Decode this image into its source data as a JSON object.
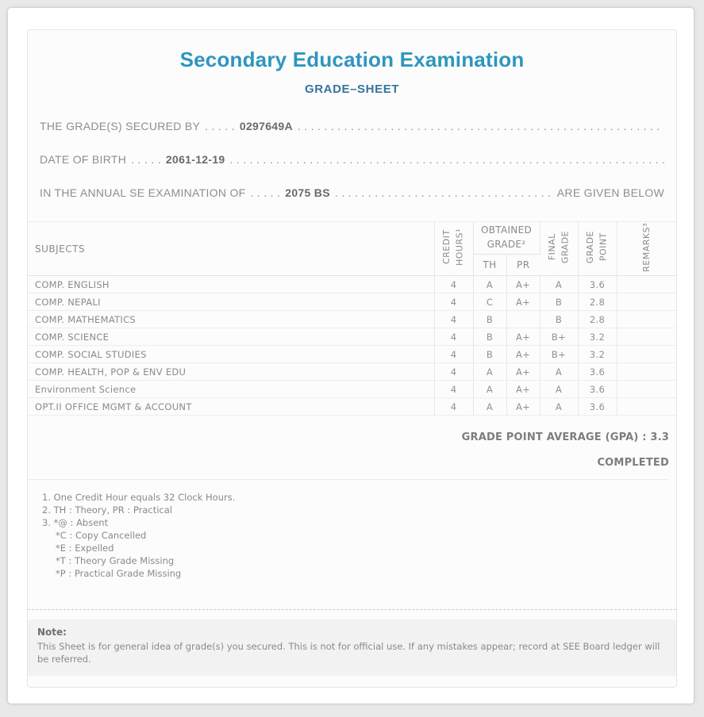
{
  "page": {
    "title": "Secondary Education Examination",
    "subtitle": "GRADE–SHEET"
  },
  "info": {
    "dots_short": ". . . . .",
    "dots_fill": ". . . . . . . . . . . . . . . . . . . . . . . . . . . . . . . . . . . . . . . . . . . . . . . . . . . . . . . . . . . . . . . . . . . . . . . . . . . . . . . . . . . . . . . . . . . . . . . . . . . . . . . . . . . . . . . . ",
    "secured_by": {
      "label": "THE GRADE(S) SECURED BY",
      "value": "0297649A"
    },
    "date_of_birth": {
      "label": "DATE OF BIRTH",
      "value": "2061-12-19"
    },
    "examination": {
      "label": "IN THE ANNUAL SE EXAMINATION OF",
      "value": "2075 BS",
      "suffix": "ARE GIVEN BELOW"
    }
  },
  "table": {
    "headers": {
      "subjects": "SUBJECTS",
      "credit_hours": "CREDIT\nHOURS¹",
      "obtained_grade": "OBTAINED\nGRADE²",
      "th": "TH",
      "pr": "PR",
      "final_grade": "FINAL\nGRADE",
      "grade_point": "GRADE\nPOINT",
      "remarks": "REMARKS³"
    },
    "rows": [
      {
        "subject": "COMP. ENGLISH",
        "credit": "4",
        "th": "A",
        "pr": "A+",
        "final": "A",
        "point": "3.6",
        "remarks": ""
      },
      {
        "subject": "COMP. NEPALI",
        "credit": "4",
        "th": "C",
        "pr": "A+",
        "final": "B",
        "point": "2.8",
        "remarks": ""
      },
      {
        "subject": "COMP. MATHEMATICS",
        "credit": "4",
        "th": "B",
        "pr": "",
        "final": "B",
        "point": "2.8",
        "remarks": ""
      },
      {
        "subject": "COMP. SCIENCE",
        "credit": "4",
        "th": "B",
        "pr": "A+",
        "final": "B+",
        "point": "3.2",
        "remarks": ""
      },
      {
        "subject": "COMP. SOCIAL STUDIES",
        "credit": "4",
        "th": "B",
        "pr": "A+",
        "final": "B+",
        "point": "3.2",
        "remarks": ""
      },
      {
        "subject": "COMP. HEALTH, POP & ENV EDU",
        "credit": "4",
        "th": "A",
        "pr": "A+",
        "final": "A",
        "point": "3.6",
        "remarks": ""
      },
      {
        "subject": "Environment Science",
        "credit": "4",
        "th": "A",
        "pr": "A+",
        "final": "A",
        "point": "3.6",
        "remarks": ""
      },
      {
        "subject": "OPT.II OFFICE MGMT & ACCOUNT",
        "credit": "4",
        "th": "A",
        "pr": "A+",
        "final": "A",
        "point": "3.6",
        "remarks": ""
      }
    ],
    "gpa_line": "GRADE POINT AVERAGE (GPA) : 3.3",
    "status": "COMPLETED"
  },
  "footnotes": {
    "line1": "1. One Credit Hour equals 32 Clock Hours.",
    "line2": "2. TH : Theory, PR : Practical",
    "line3": "3. *@ : Absent",
    "line4": "*C : Copy Cancelled",
    "line5": "*E : Expelled",
    "line6": "*T : Theory Grade Missing",
    "line7": "*P : Practical Grade Missing"
  },
  "note": {
    "title": "Note:",
    "body": "This Sheet is for general idea of grade(s) you secured. This is not for official use. If any mistakes appear; record at SEE Board ledger will be referred."
  },
  "colors": {
    "title_accent": "#2e96be",
    "subtitle_accent": "#35759d",
    "text_gray": "#8e8e8e",
    "panel_bg": "#fcfcfc",
    "note_bg": "#f2f2f2"
  }
}
